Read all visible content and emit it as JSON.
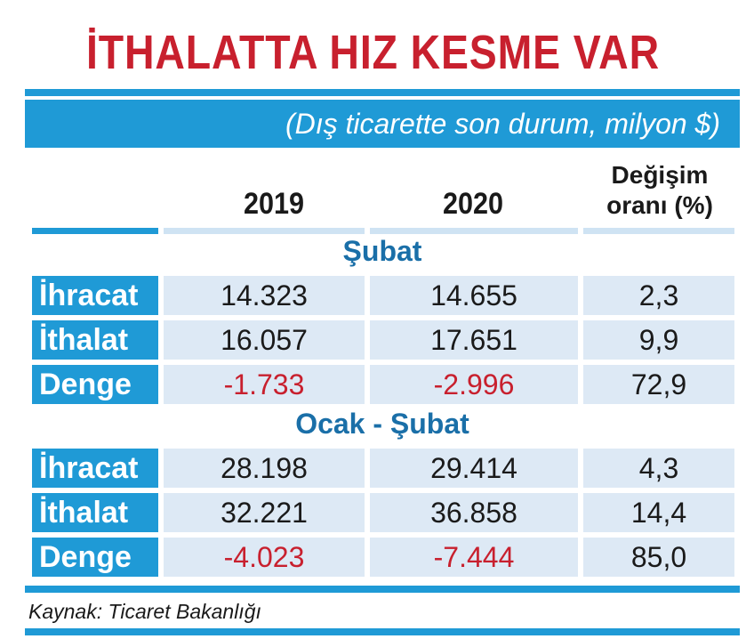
{
  "title": "İTHALATTA HIZ KESME VAR",
  "subtitle": "(Dış ticarette son durum, milyon $)",
  "source": "Kaynak: Ticaret Bakanlığı",
  "colors": {
    "accent_blue": "#1f9ad6",
    "title_red": "#c8202e",
    "negative_red": "#c8202e",
    "row_bg": "#dde9f5"
  },
  "chart_data": {
    "type": "table",
    "columns": [
      "2019",
      "2020",
      "Değişim oranı (%)"
    ],
    "sections": [
      {
        "name": "Şubat",
        "rows": [
          {
            "label": "İhracat",
            "values": [
              "14.323",
              "14.655",
              "2,3"
            ]
          },
          {
            "label": "İthalat",
            "values": [
              "16.057",
              "17.651",
              "9,9"
            ]
          },
          {
            "label": "Denge",
            "values": [
              "-1.733",
              "-2.996",
              "72,9"
            ]
          }
        ]
      },
      {
        "name": "Ocak - Şubat",
        "rows": [
          {
            "label": "İhracat",
            "values": [
              "28.198",
              "29.414",
              "4,3"
            ]
          },
          {
            "label": "İthalat",
            "values": [
              "32.221",
              "36.858",
              "14,4"
            ]
          },
          {
            "label": "Denge",
            "values": [
              "-4.023",
              "-7.444",
              "85,0"
            ]
          }
        ]
      }
    ]
  }
}
